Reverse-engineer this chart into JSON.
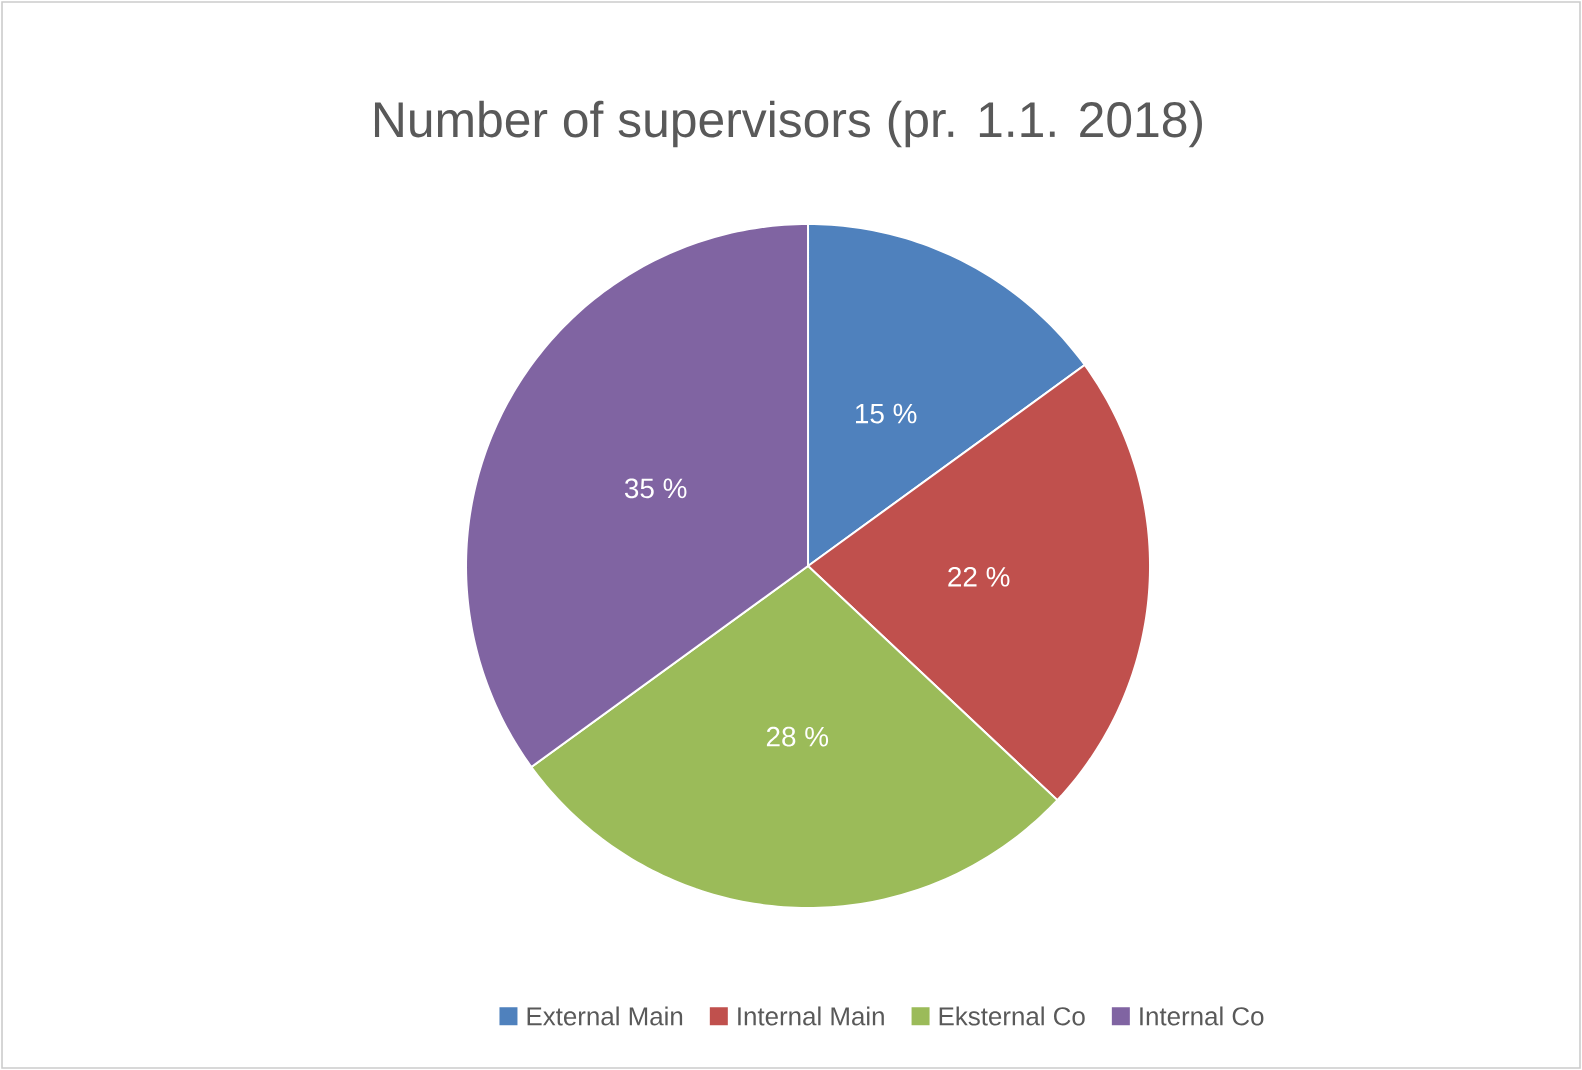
{
  "chart_data": {
    "type": "pie",
    "title": "Number of supervisors (pr. 1.1. 2018)",
    "categories": [
      "External Main",
      "Internal Main",
      "Eksternal Co",
      "Internal Co"
    ],
    "values": [
      15,
      22,
      28,
      35
    ],
    "value_labels": [
      "15 %",
      "22 %",
      "28 %",
      "35 %"
    ],
    "colors": [
      "#4f81bd",
      "#c0504d",
      "#9bbb59",
      "#8064a2"
    ],
    "legend": "bottom"
  }
}
